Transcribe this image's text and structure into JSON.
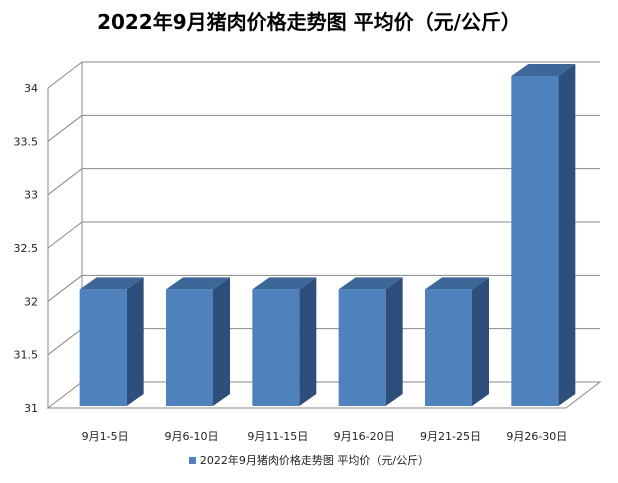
{
  "chart_data": {
    "type": "bar",
    "title": "2022年9月猪肉价格走势图 平均价（元/公斤）",
    "categories": [
      "9月1-5日",
      "9月6-10日",
      "9月11-15日",
      "9月16-20日",
      "9月21-25日",
      "9月26-30日"
    ],
    "series": [
      {
        "name": "2022年9月猪肉价格走势图 平均价（元/公斤）",
        "values": [
          32,
          32,
          32,
          32,
          32,
          34
        ]
      }
    ],
    "ylim": [
      31,
      34
    ],
    "yticks": [
      "31",
      "31.5",
      "32",
      "32.5",
      "33",
      "33.5",
      "34"
    ],
    "grid": true,
    "legend": "bottom",
    "bar_color": "#4f81bd"
  }
}
